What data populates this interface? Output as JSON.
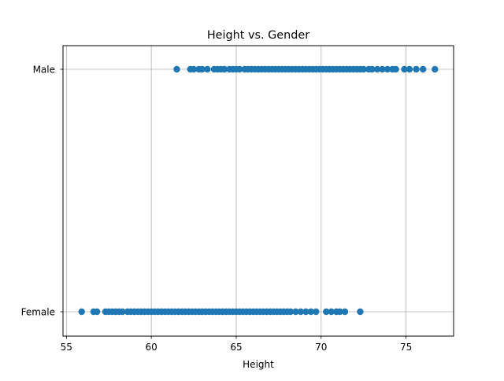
{
  "chart_data": {
    "type": "scatter",
    "title": "Height vs. Gender",
    "xlabel": "Height",
    "ylabel": "",
    "xlim": [
      54.8,
      77.8
    ],
    "xticks": [
      55,
      60,
      65,
      70,
      75
    ],
    "categories": [
      "Female",
      "Male"
    ],
    "grid": true,
    "marker_color": "#1f77b4",
    "series": [
      {
        "category": "Male",
        "x": [
          61.5,
          62.3,
          62.5,
          62.8,
          63.0,
          63.3,
          63.7,
          63.9,
          64.1,
          64.3,
          64.6,
          64.8,
          65.0,
          65.2,
          65.5,
          65.7,
          65.9,
          66.1,
          66.3,
          66.5,
          66.7,
          66.9,
          67.1,
          67.3,
          67.5,
          67.7,
          67.9,
          68.1,
          68.3,
          68.5,
          68.7,
          68.9,
          69.1,
          69.3,
          69.5,
          69.7,
          69.9,
          70.1,
          70.3,
          70.5,
          70.7,
          70.9,
          71.1,
          71.3,
          71.5,
          71.7,
          71.9,
          72.1,
          72.3,
          72.5,
          72.8,
          73.0,
          73.3,
          73.6,
          73.9,
          74.2,
          74.4,
          74.9,
          75.2,
          75.6,
          76.0,
          76.7
        ]
      },
      {
        "category": "Female",
        "x": [
          55.9,
          56.6,
          56.8,
          57.3,
          57.5,
          57.7,
          57.9,
          58.1,
          58.3,
          58.6,
          58.8,
          59.0,
          59.2,
          59.4,
          59.6,
          59.8,
          60.0,
          60.2,
          60.4,
          60.6,
          60.8,
          61.0,
          61.2,
          61.4,
          61.6,
          61.8,
          62.0,
          62.2,
          62.4,
          62.6,
          62.8,
          63.0,
          63.2,
          63.4,
          63.6,
          63.8,
          64.0,
          64.2,
          64.4,
          64.6,
          64.8,
          65.0,
          65.2,
          65.4,
          65.6,
          65.8,
          66.0,
          66.2,
          66.4,
          66.6,
          66.8,
          67.0,
          67.2,
          67.4,
          67.6,
          67.8,
          68.0,
          68.2,
          68.5,
          68.8,
          69.1,
          69.4,
          69.7,
          70.3,
          70.6,
          70.9,
          71.1,
          71.4,
          72.3
        ]
      }
    ]
  }
}
